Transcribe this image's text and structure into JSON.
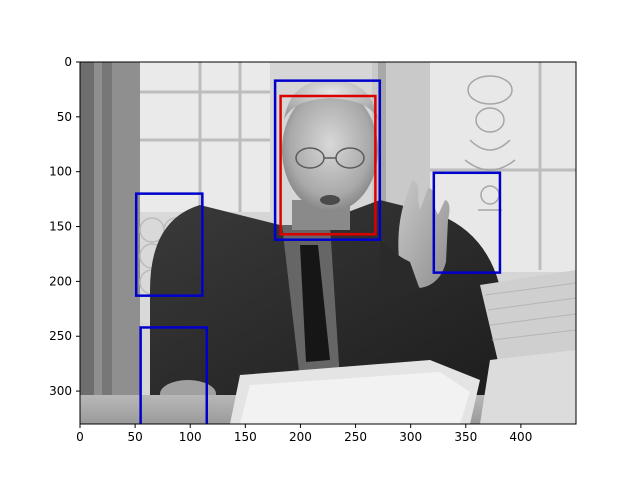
{
  "figure": {
    "image_extent": {
      "x": [
        0,
        450
      ],
      "y": [
        0,
        330
      ]
    },
    "image_description_short": "grayscale photo of a man at a desk with papers",
    "x_axis": {
      "ticks": [
        0,
        50,
        100,
        150,
        200,
        250,
        300,
        350,
        400
      ],
      "tick_labels": [
        "0",
        "50",
        "100",
        "150",
        "200",
        "250",
        "300",
        "350",
        "400"
      ]
    },
    "y_axis": {
      "ticks": [
        0,
        50,
        100,
        150,
        200,
        250,
        300
      ],
      "tick_labels": [
        "0",
        "50",
        "100",
        "150",
        "200",
        "250",
        "300"
      ],
      "inverted": true
    },
    "boxes": [
      {
        "name": "face-detection-box",
        "color": "#0000cc",
        "x0": 177,
        "y0": 17,
        "x1": 272,
        "y1": 162
      },
      {
        "name": "face-ground-truth-box",
        "color": "#dd0000",
        "x0": 182,
        "y0": 31,
        "x1": 268,
        "y1": 157
      },
      {
        "name": "false-detection-box-left-window",
        "color": "#0000cc",
        "x0": 51,
        "y0": 120,
        "x1": 111,
        "y1": 213
      },
      {
        "name": "false-detection-box-hand",
        "color": "#0000cc",
        "x0": 321,
        "y0": 101,
        "x1": 381,
        "y1": 192
      },
      {
        "name": "false-detection-box-bottom-left",
        "color": "#0000cc",
        "x0": 55,
        "y0": 242,
        "x1": 115,
        "y1": 335
      }
    ]
  }
}
